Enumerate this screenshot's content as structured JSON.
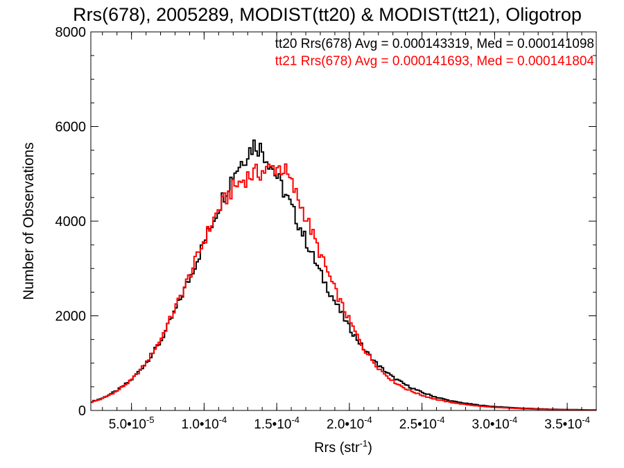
{
  "chart_data": {
    "type": "line",
    "title": "Rrs(678), 2005289, MODIST(tt20) & MODIST(tt21), Oligotrop",
    "xlabel": "Rrs (str",
    "xlabel_sup": "-1",
    "xlabel_close": ")",
    "ylabel": "Number of Observations",
    "xlim": [
      2.2e-05,
      0.00037
    ],
    "ylim": [
      0,
      8000
    ],
    "x_ticks": [
      {
        "value": 5e-05,
        "mantissa": "5.0",
        "exp": "-5"
      },
      {
        "value": 0.0001,
        "mantissa": "1.0",
        "exp": "-4"
      },
      {
        "value": 0.00015,
        "mantissa": "1.5",
        "exp": "-4"
      },
      {
        "value": 0.0002,
        "mantissa": "2.0",
        "exp": "-4"
      },
      {
        "value": 0.00025,
        "mantissa": "2.5",
        "exp": "-4"
      },
      {
        "value": 0.0003,
        "mantissa": "3.0",
        "exp": "-4"
      },
      {
        "value": 0.00035,
        "mantissa": "3.5",
        "exp": "-4"
      }
    ],
    "x_tick_sep": "•10",
    "y_ticks": [
      0,
      2000,
      4000,
      6000,
      8000
    ],
    "grid": false,
    "series": [
      {
        "name": "tt20",
        "color": "#000000",
        "annotation": "tt20 Rrs(678) Avg = 0.000143319, Med = 0.000141098",
        "points": [
          [
            2.2e-05,
            180
          ],
          [
            3e-05,
            260
          ],
          [
            4e-05,
            420
          ],
          [
            5e-05,
            650
          ],
          [
            6e-05,
            1000
          ],
          [
            7e-05,
            1450
          ],
          [
            8e-05,
            2100
          ],
          [
            9e-05,
            2800
          ],
          [
            0.0001,
            3550
          ],
          [
            0.00011,
            4300
          ],
          [
            0.00012,
            5000
          ],
          [
            0.00013,
            5450
          ],
          [
            0.000135,
            5650
          ],
          [
            0.00014,
            5500
          ],
          [
            0.000145,
            5250
          ],
          [
            0.00015,
            4950
          ],
          [
            0.00016,
            4300
          ],
          [
            0.00017,
            3600
          ],
          [
            0.00018,
            2900
          ],
          [
            0.00019,
            2300
          ],
          [
            0.0002,
            1750
          ],
          [
            0.00021,
            1300
          ],
          [
            0.00022,
            950
          ],
          [
            0.00023,
            700
          ],
          [
            0.00024,
            520
          ],
          [
            0.00025,
            380
          ],
          [
            0.00026,
            280
          ],
          [
            0.00027,
            200
          ],
          [
            0.00028,
            150
          ],
          [
            0.00029,
            110
          ],
          [
            0.0003,
            80
          ],
          [
            0.00032,
            45
          ],
          [
            0.00034,
            25
          ],
          [
            0.00036,
            15
          ],
          [
            0.00037,
            10
          ]
        ]
      },
      {
        "name": "tt21",
        "color": "#ff0000",
        "annotation": "tt21 Rrs(678) Avg = 0.000141693, Med = 0.000141804",
        "points": [
          [
            2.2e-05,
            170
          ],
          [
            3e-05,
            250
          ],
          [
            4e-05,
            410
          ],
          [
            5e-05,
            640
          ],
          [
            6e-05,
            1000
          ],
          [
            7e-05,
            1500
          ],
          [
            8e-05,
            2150
          ],
          [
            9e-05,
            2850
          ],
          [
            0.0001,
            3600
          ],
          [
            0.00011,
            4250
          ],
          [
            0.00012,
            4700
          ],
          [
            0.00013,
            4950
          ],
          [
            0.00014,
            5050
          ],
          [
            0.00015,
            5150
          ],
          [
            0.000155,
            5100
          ],
          [
            0.00016,
            4800
          ],
          [
            0.00017,
            4100
          ],
          [
            0.00018,
            3300
          ],
          [
            0.00019,
            2550
          ],
          [
            0.0002,
            1900
          ],
          [
            0.00021,
            1300
          ],
          [
            0.00022,
            900
          ],
          [
            0.00023,
            620
          ],
          [
            0.00024,
            440
          ],
          [
            0.00025,
            320
          ],
          [
            0.00026,
            230
          ],
          [
            0.00027,
            170
          ],
          [
            0.00028,
            125
          ],
          [
            0.00029,
            90
          ],
          [
            0.0003,
            65
          ],
          [
            0.00032,
            35
          ],
          [
            0.00034,
            20
          ],
          [
            0.00036,
            12
          ],
          [
            0.00037,
            8
          ]
        ]
      }
    ]
  }
}
